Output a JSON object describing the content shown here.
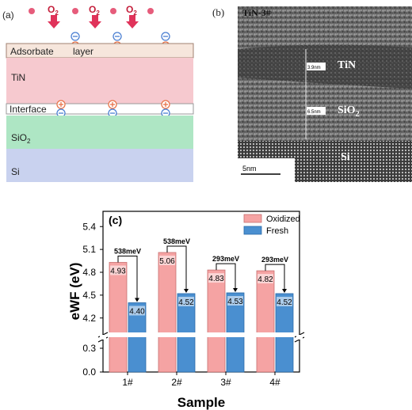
{
  "panel_a": {
    "label": "(a)",
    "o2_text": "O",
    "o2_sub": "2",
    "layers": {
      "adsorbate_word1": "Adsorbate",
      "adsorbate_word2": "layer",
      "tin": "TiN",
      "interface": "Interface",
      "sio2": "SiO",
      "sio2_sub": "2",
      "si": "Si"
    },
    "colors": {
      "adsorbate": "#f6e6dc",
      "tin": "#f6c9cf",
      "interface": "#ffffff",
      "sio2": "#aee6c4",
      "si": "#c9d2ef",
      "arrow": "#e0335a",
      "plus": "#e8744a",
      "minus": "#4a7fd2"
    }
  },
  "panel_b": {
    "label": "(b)",
    "sample": "TiN-3#",
    "tin_label": "TiN",
    "sio2_label": "SiO",
    "sio2_sub": "2",
    "si_label": "Si",
    "dim1": "3.9nm",
    "dim2": "6.5nm",
    "scale_bar": "5nm"
  },
  "chart_data": {
    "type": "bar",
    "panel_label": "c",
    "categories": [
      "1#",
      "2#",
      "3#",
      "4#"
    ],
    "series": [
      {
        "name": "Oxidized",
        "values": [
          4.93,
          5.06,
          4.83,
          4.82
        ],
        "color": "#f5a3a3"
      },
      {
        "name": "Fresh",
        "values": [
          4.4,
          4.52,
          4.53,
          4.52
        ],
        "color": "#4a8fd0"
      }
    ],
    "value_labels": {
      "Oxidized": [
        "4.93",
        "5.06",
        "4.83",
        "4.82"
      ],
      "Fresh": [
        "4.40",
        "4.52",
        "4.53",
        "4.52"
      ]
    },
    "differences": [
      "538meV",
      "538meV",
      "293meV",
      "293meV"
    ],
    "xlabel": "Sample",
    "ylabel": "eWF (eV)",
    "yticks_upper": [
      "4.2",
      "4.5",
      "4.8",
      "5.1",
      "5.4"
    ],
    "yticks_lower": [
      "0.0",
      "0.3"
    ],
    "ylim_upper": [
      4.0,
      5.6
    ],
    "ylim_lower": [
      0.0,
      0.4
    ],
    "axis_break": true,
    "grid": false,
    "legend_position": "top-right"
  }
}
